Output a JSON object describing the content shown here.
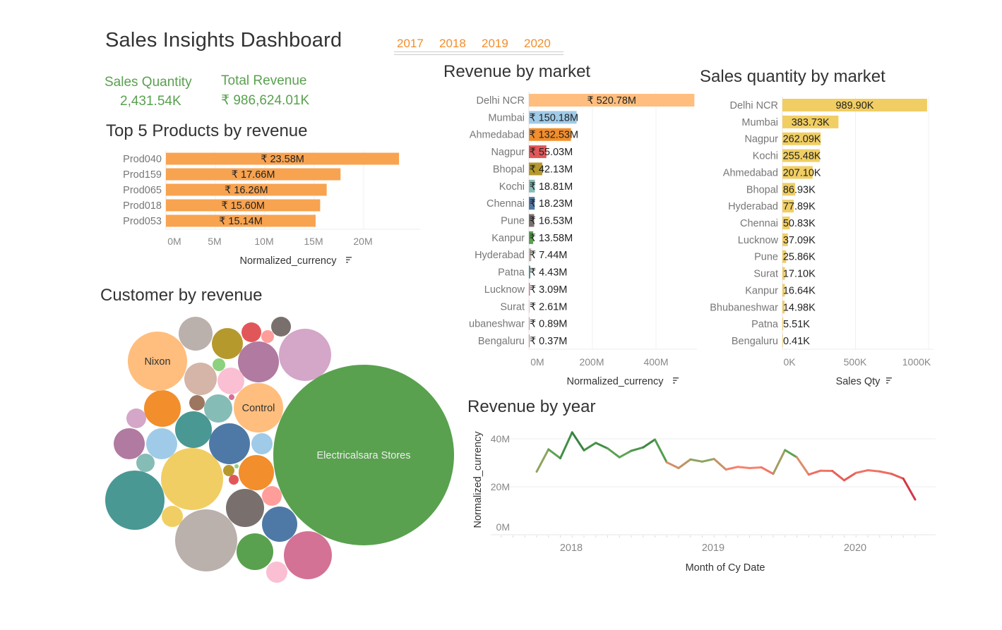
{
  "header": {
    "title": "Sales Insights Dashboard",
    "years": [
      "2017",
      "2018",
      "2019",
      "2020"
    ]
  },
  "kpis": {
    "sales_quantity": {
      "label": "Sales Quantity",
      "value": "2,431.54K"
    },
    "total_revenue": {
      "label": "Total Revenue",
      "value": "₹ 986,624.01K"
    }
  },
  "colors": {
    "accent_orange": "#f28e2b",
    "kpi_green": "#59a14f",
    "product_bar": "#f8a350",
    "qty_bar": "#f1ce63",
    "line_high": "#2e7d3c",
    "line_mid": "#6aae5a",
    "line_low": "#f6836e",
    "line_lowest": "#c4143c"
  },
  "sort_icon": "sort-descending-icon",
  "chart_data": [
    {
      "id": "top_products",
      "type": "bar",
      "title": "Top 5 Products by revenue",
      "categories": [
        "Prod040",
        "Prod159",
        "Prod065",
        "Prod018",
        "Prod053"
      ],
      "values": [
        23.58,
        17.66,
        16.26,
        15.6,
        15.14
      ],
      "labels": [
        "₹ 23.58M",
        "₹ 17.66M",
        "₹ 16.26M",
        "₹ 15.60M",
        "₹ 15.14M"
      ],
      "unit": "M",
      "xlabel": "Normalized_currency",
      "xticks": [
        "0M",
        "5M",
        "10M",
        "15M",
        "20M"
      ],
      "xtick_values": [
        0,
        5,
        10,
        15,
        20
      ],
      "grid": true
    },
    {
      "id": "revenue_by_market",
      "type": "bar",
      "title": "Revenue by market",
      "categories": [
        "Delhi NCR",
        "Mumbai",
        "Ahmedabad",
        "Nagpur",
        "Bhopal",
        "Kochi",
        "Chennai",
        "Pune",
        "Kanpur",
        "Hyderabad",
        "Patna",
        "Lucknow",
        "Surat",
        "ubaneshwar",
        "Bengaluru"
      ],
      "values": [
        520.78,
        150.18,
        132.53,
        55.03,
        42.13,
        18.81,
        18.23,
        16.53,
        13.58,
        7.44,
        4.43,
        3.09,
        2.61,
        0.89,
        0.37
      ],
      "labels": [
        "₹ 520.78M",
        "₹ 150.18M",
        "₹ 132.53M",
        "₹ 55.03M",
        "₹ 42.13M",
        "₹ 18.81M",
        "₹ 18.23M",
        "₹ 16.53M",
        "₹ 13.58M",
        "₹ 7.44M",
        "₹ 4.43M",
        "₹ 3.09M",
        "₹ 2.61M",
        "₹ 0.89M",
        "₹ 0.37M"
      ],
      "colors": [
        "#ffbe7d",
        "#a0cbe8",
        "#f28e2b",
        "#e15759",
        "#b6992d",
        "#86bcb6",
        "#4e79a7",
        "#79706e",
        "#59a14f",
        "#bab0ac",
        "#499894",
        "#d37295",
        "#fabfd2",
        "#b07aa1",
        "#9d7660"
      ],
      "unit": "M",
      "xlabel": "Normalized_currency",
      "xticks": [
        "0M",
        "200M",
        "400M"
      ],
      "xtick_values": [
        0,
        200,
        400
      ],
      "grid": true
    },
    {
      "id": "qty_by_market",
      "type": "bar",
      "title": "Sales quantity by market",
      "categories": [
        "Delhi NCR",
        "Mumbai",
        "Nagpur",
        "Kochi",
        "Ahmedabad",
        "Bhopal",
        "Hyderabad",
        "Chennai",
        "Lucknow",
        "Pune",
        "Surat",
        "Kanpur",
        "Bhubaneshwar",
        "Patna",
        "Bengaluru"
      ],
      "values": [
        989.9,
        383.73,
        262.09,
        255.48,
        207.1,
        86.93,
        77.89,
        50.83,
        37.09,
        25.86,
        17.1,
        16.64,
        14.98,
        5.51,
        0.41
      ],
      "labels": [
        "989.90K",
        "383.73K",
        "262.09K",
        "255.48K",
        "207.10K",
        "86.93K",
        "77.89K",
        "50.83K",
        "37.09K",
        "25.86K",
        "17.10K",
        "16.64K",
        "14.98K",
        "5.51K",
        "0.41K"
      ],
      "unit": "K",
      "xlabel": "Sales Qty",
      "xticks": [
        "0K",
        "500K",
        "1000K"
      ],
      "xtick_values": [
        0,
        500,
        1000
      ],
      "grid": true
    },
    {
      "id": "revenue_by_year",
      "type": "line",
      "title": "Revenue by year",
      "x": [
        "2017-10",
        "2017-11",
        "2017-12",
        "2018-01",
        "2018-02",
        "2018-03",
        "2018-04",
        "2018-05",
        "2018-06",
        "2018-07",
        "2018-08",
        "2018-09",
        "2018-10",
        "2018-11",
        "2018-12",
        "2019-01",
        "2019-02",
        "2019-03",
        "2019-04",
        "2019-05",
        "2019-06",
        "2019-07",
        "2019-08",
        "2019-09",
        "2019-10",
        "2019-11",
        "2019-12",
        "2020-01",
        "2020-02",
        "2020-03",
        "2020-04",
        "2020-05",
        "2020-06"
      ],
      "y": [
        26.3,
        35.6,
        31.9,
        42.7,
        35.2,
        38.3,
        36.0,
        32.3,
        35.0,
        36.4,
        39.7,
        30.2,
        27.8,
        31.4,
        30.5,
        31.6,
        27.2,
        28.3,
        27.8,
        28.1,
        25.4,
        35.3,
        32.3,
        25.1,
        26.7,
        26.6,
        22.7,
        25.8,
        26.9,
        26.4,
        25.4,
        23.4,
        14.7
      ],
      "unit": "M",
      "xlabel": "Month of Cy Date",
      "ylabel": "Normalized_currency",
      "yticks": [
        "0M",
        "20M",
        "40M"
      ],
      "ytick_values": [
        0,
        20,
        40
      ],
      "xticks": [
        "2018",
        "2019",
        "2020"
      ],
      "grid": true
    },
    {
      "id": "customer_by_revenue",
      "type": "bubble",
      "title": "Customer by revenue",
      "labeled": [
        {
          "label": "Electricalsara Stores",
          "color": "#59a14f"
        },
        {
          "label": "Nixon",
          "color": "#ffbe7d"
        },
        {
          "label": "Control",
          "color": "#ffbe7d"
        }
      ],
      "bubble_colors": [
        "#bab0ac",
        "#b6992d",
        "#e15759",
        "#ff9d9a",
        "#79706e",
        "#d4a6c8",
        "#b07aa1",
        "#8cd17d",
        "#d4b5a7",
        "#fabfd2",
        "#d37295",
        "#f28e2b",
        "#9d7660",
        "#86bcb6",
        "#d4a6c8",
        "#499894",
        "#b07aa1",
        "#a0cbe8",
        "#4e79a7",
        "#a0cbe8",
        "#86bcb6",
        "#f1ce63",
        "#b6992d",
        "#8cd17d",
        "#e15759",
        "#f28e2b",
        "#499894",
        "#f1ce63",
        "#79706e",
        "#ff9d9a",
        "#bab0ac",
        "#4e79a7",
        "#59a14f",
        "#d37295",
        "#fabfd2"
      ]
    }
  ]
}
